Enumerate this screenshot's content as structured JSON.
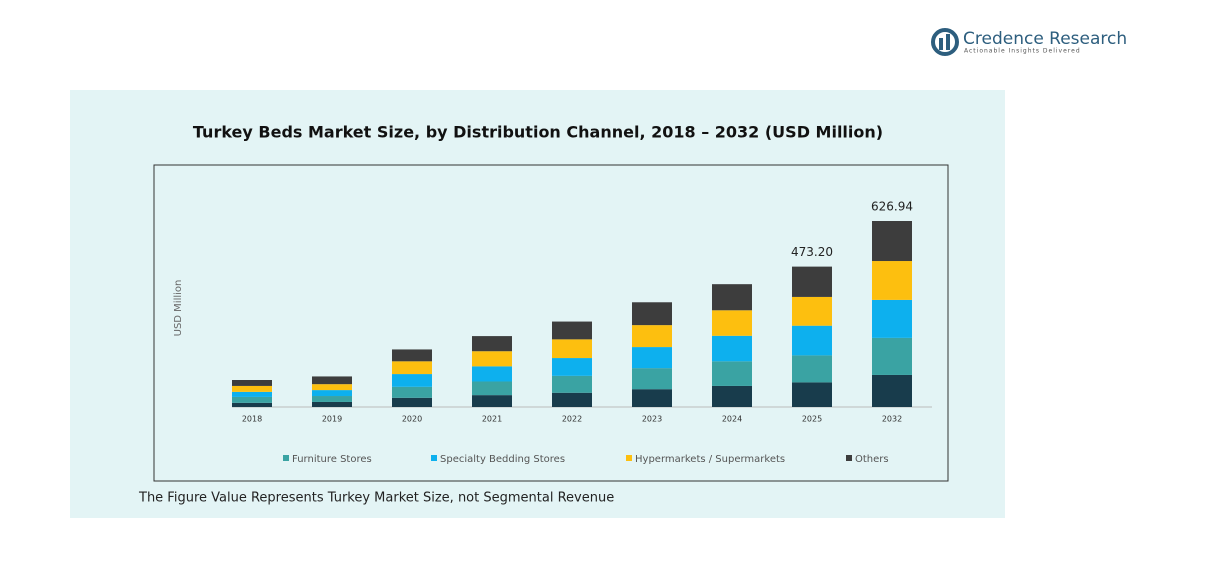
{
  "header": {
    "brand": "Credence Research",
    "tagline": "Actionable Insights Delivered"
  },
  "chart_data": {
    "type": "stacked-bar",
    "title": "Turkey Beds Market Size, by Distribution Channel, 2018 – 2032 (USD Million)",
    "y_label": "USD Million",
    "categories": [
      "2018",
      "2019",
      "2020",
      "2021",
      "2022",
      "2023",
      "2024",
      "2025",
      "2032"
    ],
    "series": [
      {
        "color": "#183c4c",
        "values": [
          14,
          17,
          31,
          40,
          48,
          60,
          71,
          83,
          108
        ]
      },
      {
        "name": "Furniture Stores",
        "color": "#3aa3a3",
        "values": [
          20,
          20,
          37,
          46,
          57,
          71,
          83,
          91,
          125
        ]
      },
      {
        "name": "Specialty Bedding Stores",
        "color": "#0db0ee",
        "values": [
          17,
          20,
          43,
          51,
          60,
          71,
          86,
          100,
          128
        ]
      },
      {
        "name": "Hypermarkets / Supermarkets",
        "color": "#fdbf0f",
        "values": [
          20,
          20,
          43,
          51,
          63,
          74,
          86,
          97,
          131
        ]
      },
      {
        "name": "Others",
        "color": "#3d3d3d",
        "values": [
          20,
          26,
          40,
          51,
          60,
          77,
          88,
          102.2,
          134.94
        ]
      }
    ],
    "totals": [
      null,
      null,
      null,
      null,
      null,
      null,
      null,
      473.2,
      626.94
    ],
    "total_labels": [
      null,
      null,
      null,
      null,
      null,
      null,
      null,
      "473.20",
      "626.94"
    ],
    "note": "The Figure Value Represents Turkey Market Size, not Segmental Revenue"
  }
}
